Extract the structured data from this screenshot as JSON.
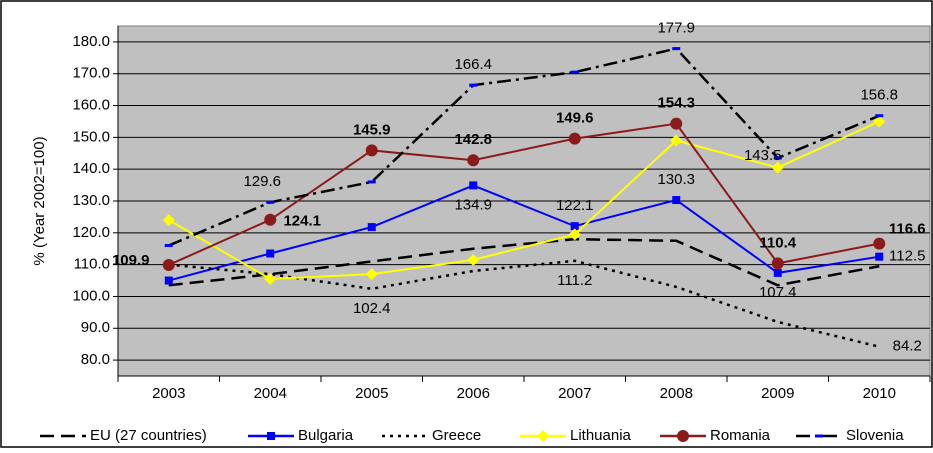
{
  "chart_data": {
    "type": "line",
    "y_label": "% (Year 2002=100)",
    "categories": [
      "2003",
      "2004",
      "2005",
      "2006",
      "2007",
      "2008",
      "2009",
      "2010"
    ],
    "ylim": [
      75,
      185
    ],
    "yticks": [
      {
        "value": 80,
        "label": "80.0"
      },
      {
        "value": 90,
        "label": "90.0"
      },
      {
        "value": 100,
        "label": "100.0"
      },
      {
        "value": 110,
        "label": "110.0"
      },
      {
        "value": 120,
        "label": "120.0"
      },
      {
        "value": 130,
        "label": "130.0"
      },
      {
        "value": 140,
        "label": "140.0"
      },
      {
        "value": 150,
        "label": "150.0"
      },
      {
        "value": 160,
        "label": "160.0"
      },
      {
        "value": 170,
        "label": "170.0"
      },
      {
        "value": 180,
        "label": "180.0"
      }
    ],
    "grid": true,
    "plot_background": "#c0c0c0",
    "legend": "bottom",
    "series": [
      {
        "name": "EU (27 countries)",
        "color": "#000000",
        "style": "dash",
        "marker": "none",
        "values": [
          103.5,
          107,
          111,
          115,
          118,
          117.5,
          103.5,
          109.5
        ]
      },
      {
        "name": "Bulgaria",
        "color": "#0000ff",
        "style": "solid",
        "marker": "square",
        "values": [
          105,
          113.5,
          121.8,
          134.9,
          122.1,
          130.3,
          107.4,
          112.5
        ],
        "value_labels": [
          null,
          null,
          null,
          "134.9",
          "122.1",
          "130.3",
          "107.4",
          "112.5"
        ]
      },
      {
        "name": "Greece",
        "color": "#000000",
        "style": "dot",
        "marker": "none",
        "values": [
          110,
          107,
          102.4,
          108,
          111.2,
          103,
          92,
          84.2
        ],
        "value_labels": [
          null,
          null,
          "102.4",
          null,
          "111.2",
          null,
          null,
          "84.2"
        ]
      },
      {
        "name": "Lithuania",
        "color": "#ffff00",
        "style": "solid",
        "marker": "diamond",
        "values": [
          124,
          105.5,
          107,
          111.5,
          119.5,
          149,
          140.5,
          155
        ]
      },
      {
        "name": "Romania",
        "color": "#8b1a1a",
        "style": "solid",
        "marker": "circle",
        "label_weight": "bold",
        "values": [
          109.9,
          124.1,
          145.9,
          142.8,
          149.6,
          154.3,
          110.4,
          116.6
        ],
        "value_labels": [
          "109.9",
          "124.1",
          "145.9",
          "142.8",
          "149.6",
          "154.3",
          "110.4",
          "116.6"
        ]
      },
      {
        "name": "Slovenia",
        "color": "#000000",
        "marker_color": "#0000ff",
        "style": "dash-dot",
        "marker": "dash",
        "values": [
          116,
          129.6,
          136,
          166.4,
          170.5,
          177.9,
          143.5,
          156.8
        ],
        "value_labels": [
          null,
          "129.6",
          null,
          "166.4",
          null,
          "177.9",
          "143.5",
          "156.8"
        ]
      }
    ]
  }
}
